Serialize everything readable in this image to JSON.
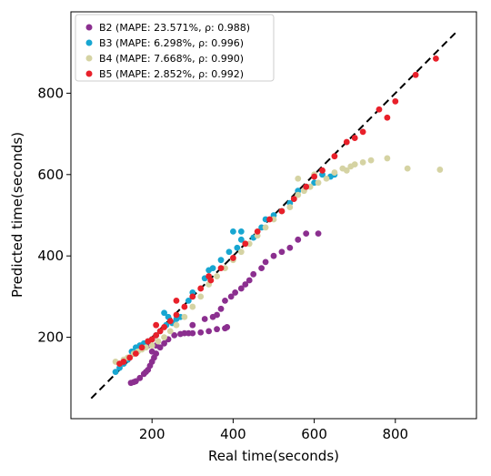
{
  "chart_data": {
    "type": "scatter",
    "xlabel": "Real time(seconds)",
    "ylabel": "Predicted time(seconds)",
    "xlim": [
      0,
      1000
    ],
    "ylim": [
      0,
      1000
    ],
    "xticks": [
      200,
      400,
      600,
      800
    ],
    "yticks": [
      200,
      400,
      600,
      800
    ],
    "grid": false,
    "legend_position": "top-left",
    "reference_line": {
      "style": "dashed",
      "color": "#000000",
      "from": [
        50,
        50
      ],
      "to": [
        950,
        950
      ]
    },
    "series": [
      {
        "name": "B2 (MAPE: 23.571%, ρ: 0.988)",
        "color": "#8b2f8f",
        "points": [
          [
            148,
            88
          ],
          [
            155,
            90
          ],
          [
            160,
            92
          ],
          [
            170,
            100
          ],
          [
            180,
            110
          ],
          [
            185,
            115
          ],
          [
            190,
            120
          ],
          [
            195,
            130
          ],
          [
            200,
            140
          ],
          [
            205,
            150
          ],
          [
            210,
            160
          ],
          [
            220,
            175
          ],
          [
            230,
            185
          ],
          [
            240,
            195
          ],
          [
            255,
            205
          ],
          [
            270,
            208
          ],
          [
            280,
            210
          ],
          [
            290,
            210
          ],
          [
            300,
            210
          ],
          [
            320,
            212
          ],
          [
            340,
            215
          ],
          [
            360,
            220
          ],
          [
            380,
            222
          ],
          [
            385,
            225
          ],
          [
            350,
            250
          ],
          [
            370,
            270
          ],
          [
            380,
            290
          ],
          [
            395,
            300
          ],
          [
            405,
            310
          ],
          [
            420,
            320
          ],
          [
            430,
            330
          ],
          [
            440,
            340
          ],
          [
            450,
            355
          ],
          [
            470,
            370
          ],
          [
            480,
            385
          ],
          [
            500,
            400
          ],
          [
            520,
            410
          ],
          [
            540,
            420
          ],
          [
            560,
            440
          ],
          [
            580,
            455
          ],
          [
            610,
            455
          ],
          [
            200,
            165
          ],
          [
            190,
            180
          ],
          [
            210,
            180
          ],
          [
            300,
            230
          ],
          [
            330,
            245
          ],
          [
            360,
            255
          ]
        ]
      },
      {
        "name": "B3 (MAPE: 6.298%, ρ: 0.996)",
        "color": "#17a6d1",
        "points": [
          [
            110,
            115
          ],
          [
            120,
            125
          ],
          [
            130,
            135
          ],
          [
            140,
            145
          ],
          [
            150,
            165
          ],
          [
            160,
            175
          ],
          [
            170,
            180
          ],
          [
            180,
            185
          ],
          [
            190,
            190
          ],
          [
            200,
            195
          ],
          [
            210,
            205
          ],
          [
            220,
            215
          ],
          [
            235,
            230
          ],
          [
            250,
            235
          ],
          [
            260,
            245
          ],
          [
            270,
            250
          ],
          [
            290,
            290
          ],
          [
            300,
            310
          ],
          [
            330,
            345
          ],
          [
            340,
            365
          ],
          [
            350,
            370
          ],
          [
            370,
            390
          ],
          [
            390,
            410
          ],
          [
            410,
            420
          ],
          [
            420,
            440
          ],
          [
            450,
            445
          ],
          [
            470,
            470
          ],
          [
            480,
            490
          ],
          [
            500,
            500
          ],
          [
            520,
            510
          ],
          [
            540,
            530
          ],
          [
            560,
            560
          ],
          [
            580,
            570
          ],
          [
            600,
            580
          ],
          [
            620,
            600
          ],
          [
            640,
            595
          ],
          [
            650,
            600
          ],
          [
            230,
            260
          ],
          [
            240,
            250
          ],
          [
            300,
            300
          ],
          [
            400,
            460
          ],
          [
            420,
            460
          ]
        ]
      },
      {
        "name": "B4 (MAPE: 7.668%, ρ: 0.990)",
        "color": "#d5d3a3",
        "points": [
          [
            110,
            140
          ],
          [
            120,
            135
          ],
          [
            130,
            145
          ],
          [
            140,
            150
          ],
          [
            155,
            160
          ],
          [
            165,
            165
          ],
          [
            175,
            170
          ],
          [
            185,
            175
          ],
          [
            200,
            180
          ],
          [
            215,
            190
          ],
          [
            230,
            200
          ],
          [
            245,
            215
          ],
          [
            260,
            230
          ],
          [
            280,
            250
          ],
          [
            300,
            275
          ],
          [
            320,
            300
          ],
          [
            340,
            330
          ],
          [
            360,
            350
          ],
          [
            380,
            370
          ],
          [
            400,
            390
          ],
          [
            420,
            410
          ],
          [
            440,
            430
          ],
          [
            460,
            450
          ],
          [
            480,
            470
          ],
          [
            500,
            490
          ],
          [
            520,
            510
          ],
          [
            540,
            520
          ],
          [
            560,
            550
          ],
          [
            575,
            560
          ],
          [
            590,
            570
          ],
          [
            610,
            580
          ],
          [
            630,
            590
          ],
          [
            650,
            605
          ],
          [
            670,
            615
          ],
          [
            690,
            620
          ],
          [
            700,
            625
          ],
          [
            720,
            630
          ],
          [
            740,
            635
          ],
          [
            780,
            640
          ],
          [
            830,
            615
          ],
          [
            910,
            612
          ],
          [
            680,
            610
          ],
          [
            600,
            600
          ],
          [
            560,
            590
          ]
        ]
      },
      {
        "name": "B5 (MAPE: 2.852%, ρ: 0.992)",
        "color": "#e8202a",
        "points": [
          [
            120,
            135
          ],
          [
            130,
            140
          ],
          [
            145,
            150
          ],
          [
            160,
            160
          ],
          [
            175,
            175
          ],
          [
            190,
            190
          ],
          [
            200,
            195
          ],
          [
            210,
            205
          ],
          [
            220,
            215
          ],
          [
            230,
            225
          ],
          [
            245,
            240
          ],
          [
            260,
            255
          ],
          [
            280,
            275
          ],
          [
            300,
            300
          ],
          [
            320,
            320
          ],
          [
            345,
            340
          ],
          [
            370,
            370
          ],
          [
            400,
            395
          ],
          [
            430,
            430
          ],
          [
            460,
            460
          ],
          [
            490,
            490
          ],
          [
            520,
            510
          ],
          [
            550,
            540
          ],
          [
            580,
            570
          ],
          [
            600,
            595
          ],
          [
            620,
            610
          ],
          [
            650,
            645
          ],
          [
            680,
            680
          ],
          [
            700,
            690
          ],
          [
            720,
            705
          ],
          [
            760,
            760
          ],
          [
            780,
            740
          ],
          [
            800,
            780
          ],
          [
            850,
            845
          ],
          [
            900,
            885
          ],
          [
            210,
            230
          ],
          [
            260,
            290
          ],
          [
            340,
            350
          ]
        ]
      }
    ]
  }
}
